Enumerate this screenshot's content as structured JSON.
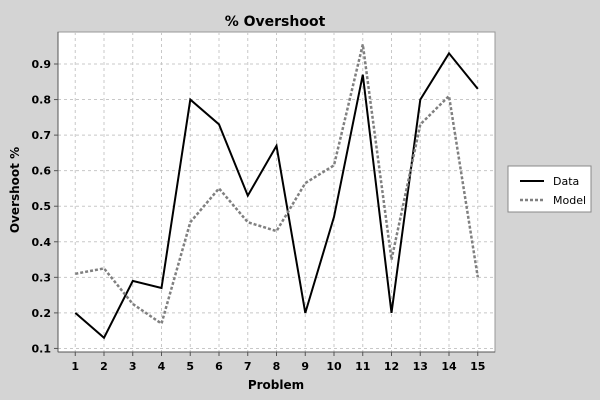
{
  "chart_data": {
    "type": "line",
    "title": "% Overshoot",
    "xlabel": "Problem",
    "ylabel": "Overshoot %",
    "x": [
      1,
      2,
      3,
      4,
      5,
      6,
      7,
      8,
      9,
      10,
      11,
      12,
      13,
      14,
      15
    ],
    "xlim": [
      0.4,
      15.6
    ],
    "ylim": [
      0.09,
      0.99
    ],
    "yticks": [
      0.1,
      0.2,
      0.3,
      0.4,
      0.5,
      0.6,
      0.7,
      0.8,
      0.9
    ],
    "ytick_labels": [
      "0.1",
      "0.2",
      "0.3",
      "0.4",
      "0.5",
      "0.6",
      "0.7",
      "0.8",
      "0.9"
    ],
    "grid": true,
    "legend_position": "right",
    "series": [
      {
        "name": "Data",
        "color": "#000000",
        "style": "solid",
        "values": [
          0.2,
          0.13,
          0.29,
          0.27,
          0.8,
          0.73,
          0.53,
          0.67,
          0.2,
          0.47,
          0.87,
          0.2,
          0.8,
          0.93,
          0.83
        ]
      },
      {
        "name": "Model",
        "color": "#808080",
        "style": "dashed",
        "values": [
          0.31,
          0.325,
          0.225,
          0.17,
          0.455,
          0.55,
          0.455,
          0.43,
          0.565,
          0.615,
          0.955,
          0.35,
          0.73,
          0.81,
          0.3
        ]
      }
    ]
  }
}
